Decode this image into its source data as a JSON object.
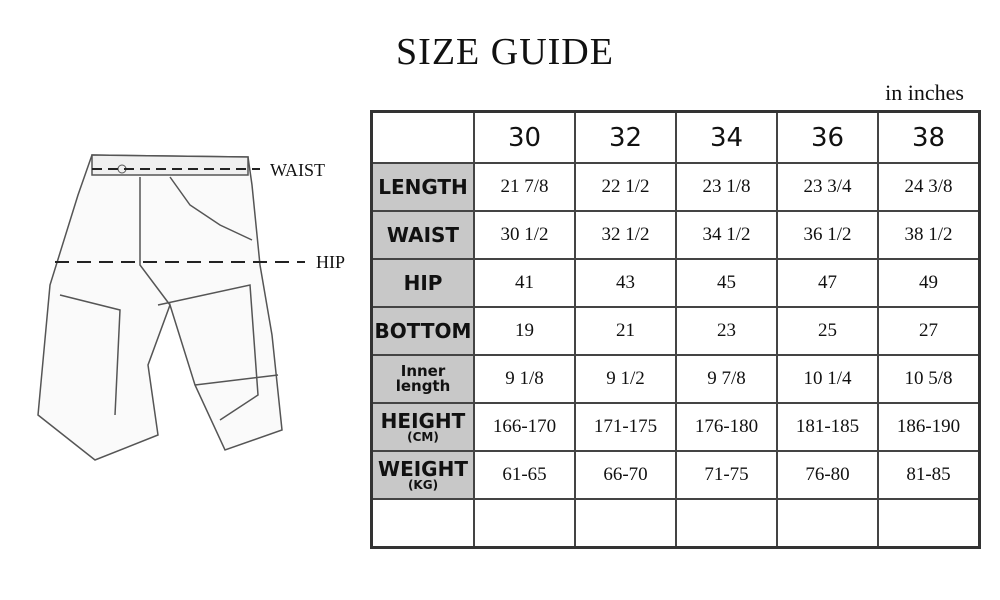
{
  "title": "SIZE GUIDE",
  "unit": "in inches",
  "diagram": {
    "waist_label": "WAIST",
    "hip_label": "HIP"
  },
  "sizes": [
    "30",
    "32",
    "34",
    "36",
    "38"
  ],
  "rows": [
    {
      "label": "LENGTH",
      "values": [
        "21 7/8",
        "22 1/2",
        "23 1/8",
        "23 3/4",
        "24 3/8"
      ]
    },
    {
      "label": "WAIST",
      "values": [
        "30 1/2",
        "32 1/2",
        "34 1/2",
        "36 1/2",
        "38 1/2"
      ]
    },
    {
      "label": "HIP",
      "values": [
        "41",
        "43",
        "45",
        "47",
        "49"
      ]
    },
    {
      "label": "BOTTOM",
      "values": [
        "19",
        "21",
        "23",
        "25",
        "27"
      ]
    },
    {
      "label": "Inner length",
      "values": [
        "9 1/8",
        "9 1/2",
        "9 7/8",
        "10 1/4",
        "10 5/8"
      ]
    },
    {
      "label": "HEIGHT",
      "sub": "(CM)",
      "values": [
        "166-170",
        "171-175",
        "176-180",
        "181-185",
        "186-190"
      ]
    },
    {
      "label": "WEIGHT",
      "sub": "(KG)",
      "values": [
        "61-65",
        "66-70",
        "71-75",
        "76-80",
        "81-85"
      ]
    }
  ]
}
